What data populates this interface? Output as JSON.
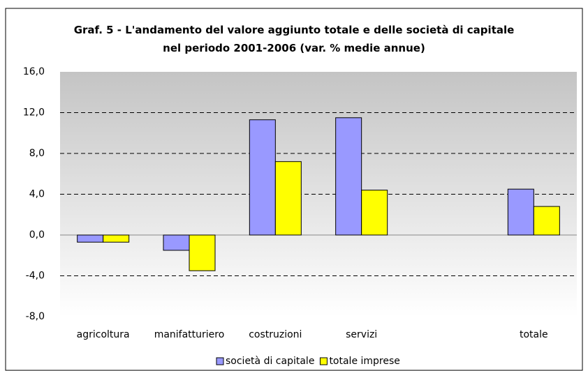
{
  "chart_data": {
    "type": "bar",
    "title": "Graf. 5 - L'andamento del valore aggiunto totale e delle società di capitale nel periodo 2001-2006 (var. % medie annue)",
    "categories": [
      "agricoltura",
      "manifatturiero",
      "costruzioni",
      "servizi",
      null,
      "totale"
    ],
    "series": [
      {
        "name": "società di capitale",
        "color": "#9999ff",
        "values": [
          -0.7,
          -1.5,
          11.3,
          11.5,
          null,
          4.5
        ]
      },
      {
        "name": "totale imprese",
        "color": "#ffff00",
        "values": [
          -0.7,
          -3.5,
          7.2,
          4.4,
          null,
          2.8
        ]
      }
    ],
    "ylim": [
      -8,
      16
    ],
    "yticks": [
      {
        "value": -8,
        "label": "-8,0"
      },
      {
        "value": -4,
        "label": "-4,0"
      },
      {
        "value": 0,
        "label": "0,0"
      },
      {
        "value": 4,
        "label": "4,0"
      },
      {
        "value": 8,
        "label": "8,0"
      },
      {
        "value": 12,
        "label": "12,0"
      },
      {
        "value": 16,
        "label": "16,0"
      }
    ],
    "grid": true,
    "legend": "bottom"
  }
}
